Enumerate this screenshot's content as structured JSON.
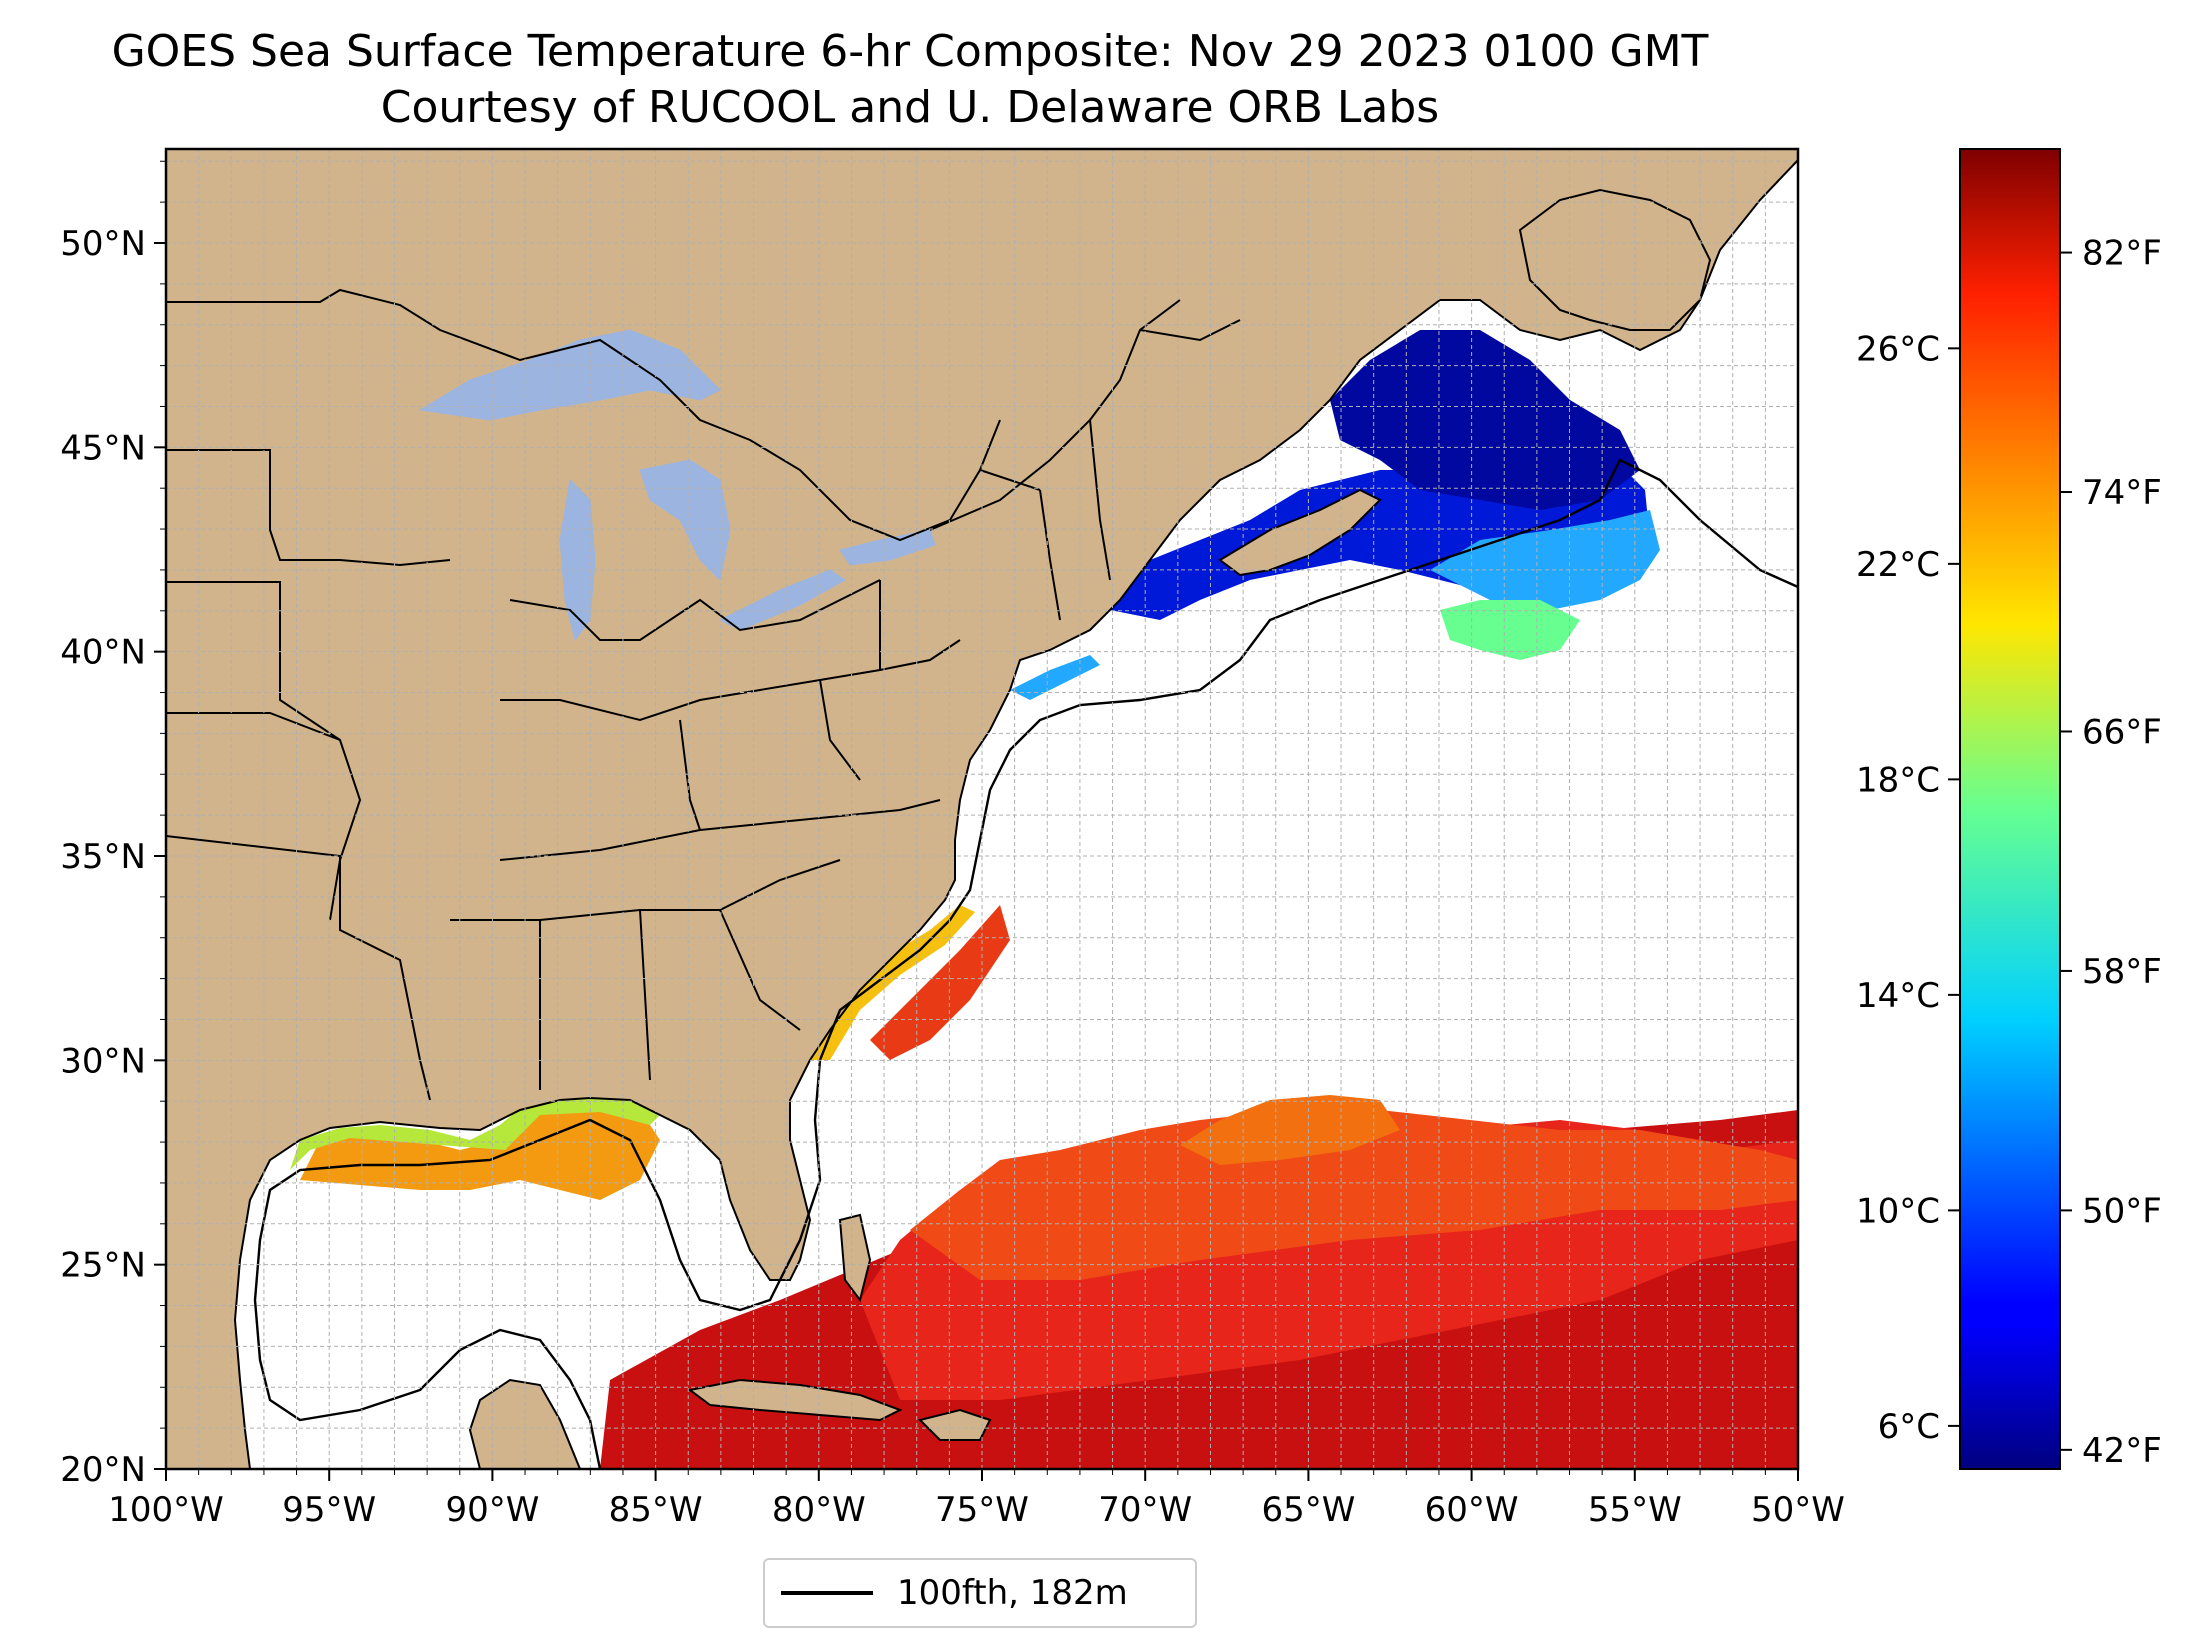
{
  "title": {
    "line1": "GOES Sea Surface Temperature 6-hr Composite: Nov 29 2023 0100 GMT",
    "line2": "Courtesy of RUCOOL and U. Delaware ORB Labs"
  },
  "map": {
    "lon_range": [
      -100,
      -50
    ],
    "lat_range": [
      20,
      52.3
    ],
    "grid": true,
    "colors": {
      "land": "#d2b48c",
      "lakes": "#9bb5e0",
      "ocean_no_data": "#ffffff",
      "borders": "#000000",
      "gridlines": "#b0b0b0"
    },
    "x_ticks": [
      "100°W",
      "95°W",
      "90°W",
      "85°W",
      "80°W",
      "75°W",
      "70°W",
      "65°W",
      "60°W",
      "55°W",
      "50°W"
    ],
    "y_ticks": [
      "20°N",
      "25°N",
      "30°N",
      "35°N",
      "40°N",
      "45°N",
      "50°N"
    ]
  },
  "colorbar": {
    "colormap": "jet",
    "celsius_ticks": [
      "6°C",
      "10°C",
      "14°C",
      "18°C",
      "22°C",
      "26°C"
    ],
    "fahrenheit_ticks": [
      "42°F",
      "50°F",
      "58°F",
      "66°F",
      "74°F",
      "82°F"
    ]
  },
  "legend": {
    "entries": [
      {
        "label": "100fth, 182m",
        "line_color": "#000000"
      }
    ],
    "placement": "bottom-center"
  }
}
